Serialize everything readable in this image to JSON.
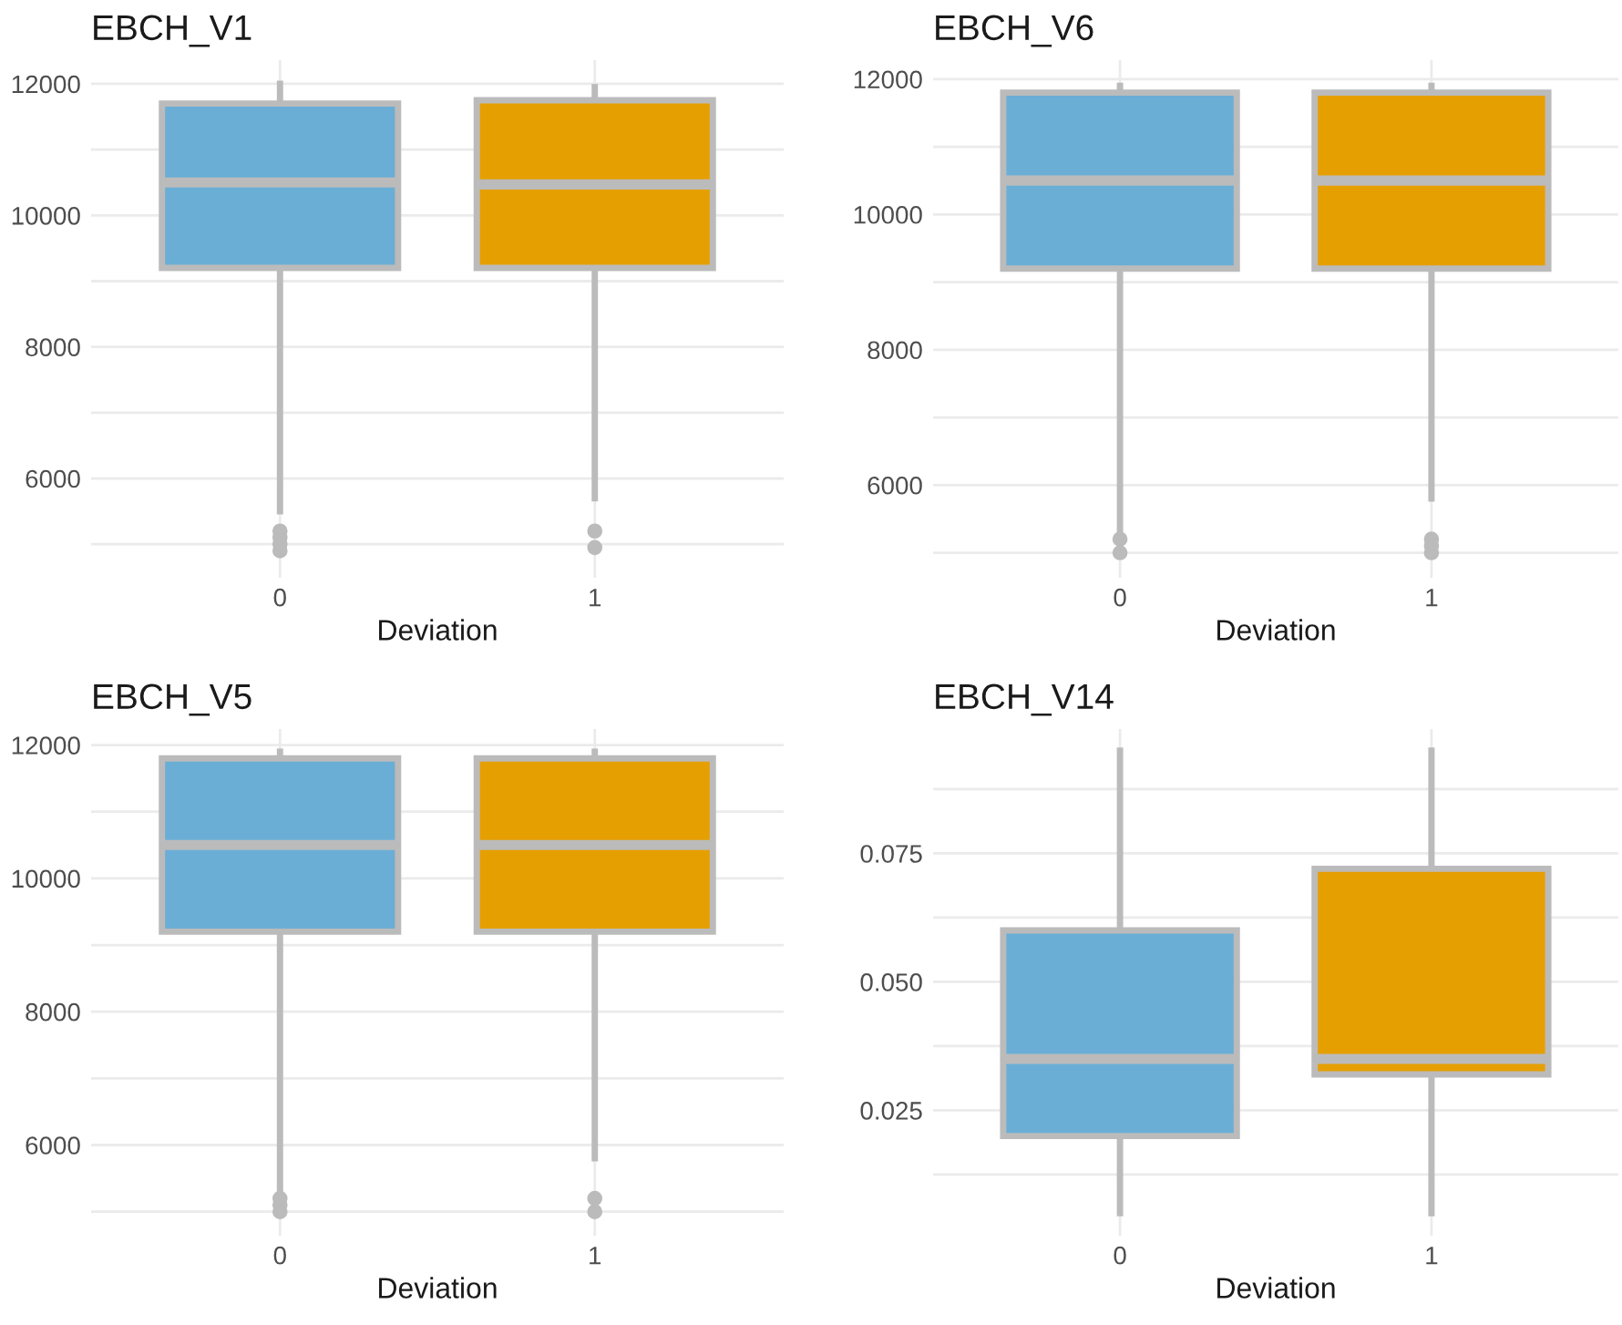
{
  "chart_data": [
    {
      "type": "box",
      "title": "EBCH_V1",
      "xlabel": "Deviation",
      "categories": [
        "0",
        "1"
      ],
      "colors": [
        "#6aaed6",
        "#e69f00"
      ],
      "boxes": [
        {
          "low": 5500,
          "q1": 9200,
          "median": 10500,
          "q3": 11700,
          "high": 12000,
          "outliers": [
            5200,
            5100,
            5000,
            4900
          ]
        },
        {
          "low": 5700,
          "q1": 9200,
          "median": 10470,
          "q3": 11750,
          "high": 11950,
          "outliers": [
            5200,
            4950
          ]
        }
      ],
      "ylim": [
        4490,
        12360
      ],
      "yticks": [
        {
          "value": 5000,
          "label": null
        },
        6000,
        {
          "value": 7000,
          "label": null
        },
        8000,
        {
          "value": 9000,
          "label": null
        },
        10000,
        {
          "value": 11000,
          "label": null
        },
        12000
      ],
      "grid": true
    },
    {
      "type": "box",
      "title": "EBCH_V6",
      "xlabel": "Deviation",
      "categories": [
        "0",
        "1"
      ],
      "colors": [
        "#6aaed6",
        "#e69f00"
      ],
      "boxes": [
        {
          "low": 5300,
          "q1": 9200,
          "median": 10500,
          "q3": 11800,
          "high": 11900,
          "outliers": [
            5200,
            5000
          ]
        },
        {
          "low": 5800,
          "q1": 9200,
          "median": 10500,
          "q3": 11800,
          "high": 11900,
          "outliers": [
            5200,
            5100,
            5000
          ]
        }
      ],
      "ylim": [
        4630,
        12280
      ],
      "yticks": [
        {
          "value": 5000,
          "label": null
        },
        6000,
        {
          "value": 7000,
          "label": null
        },
        8000,
        {
          "value": 9000,
          "label": null
        },
        10000,
        {
          "value": 11000,
          "label": null
        },
        12000
      ],
      "grid": true
    },
    {
      "type": "box",
      "title": "EBCH_V5",
      "xlabel": "Deviation",
      "categories": [
        "0",
        "1"
      ],
      "colors": [
        "#6aaed6",
        "#e69f00"
      ],
      "boxes": [
        {
          "low": 5300,
          "q1": 9200,
          "median": 10500,
          "q3": 11800,
          "high": 11900,
          "outliers": [
            5200,
            5100,
            5000
          ]
        },
        {
          "low": 5800,
          "q1": 9200,
          "median": 10500,
          "q3": 11800,
          "high": 11900,
          "outliers": [
            5200,
            5000
          ]
        }
      ],
      "ylim": [
        4640,
        12240
      ],
      "yticks": [
        {
          "value": 5000,
          "label": null
        },
        6000,
        {
          "value": 7000,
          "label": null
        },
        8000,
        {
          "value": 9000,
          "label": null
        },
        10000,
        {
          "value": 11000,
          "label": null
        },
        12000
      ],
      "grid": true
    },
    {
      "type": "box",
      "title": "EBCH_V14",
      "xlabel": "Deviation",
      "categories": [
        "0",
        "1"
      ],
      "colors": [
        "#6aaed6",
        "#e69f00"
      ],
      "boxes": [
        {
          "low": 0.005,
          "q1": 0.02,
          "median": 0.035,
          "q3": 0.06,
          "high": 0.095
        },
        {
          "low": 0.005,
          "q1": 0.032,
          "median": 0.035,
          "q3": 0.072,
          "high": 0.095
        }
      ],
      "ylim": [
        0.0006,
        0.0992
      ],
      "yticks": [
        {
          "value": 0.0125,
          "label": null
        },
        0.025,
        {
          "value": 0.0375,
          "label": null
        },
        {
          "value": 0.05,
          "label": "0.050"
        },
        {
          "value": 0.0625,
          "label": null
        },
        0.075,
        {
          "value": 0.0875,
          "label": null
        }
      ],
      "grid": true
    }
  ]
}
